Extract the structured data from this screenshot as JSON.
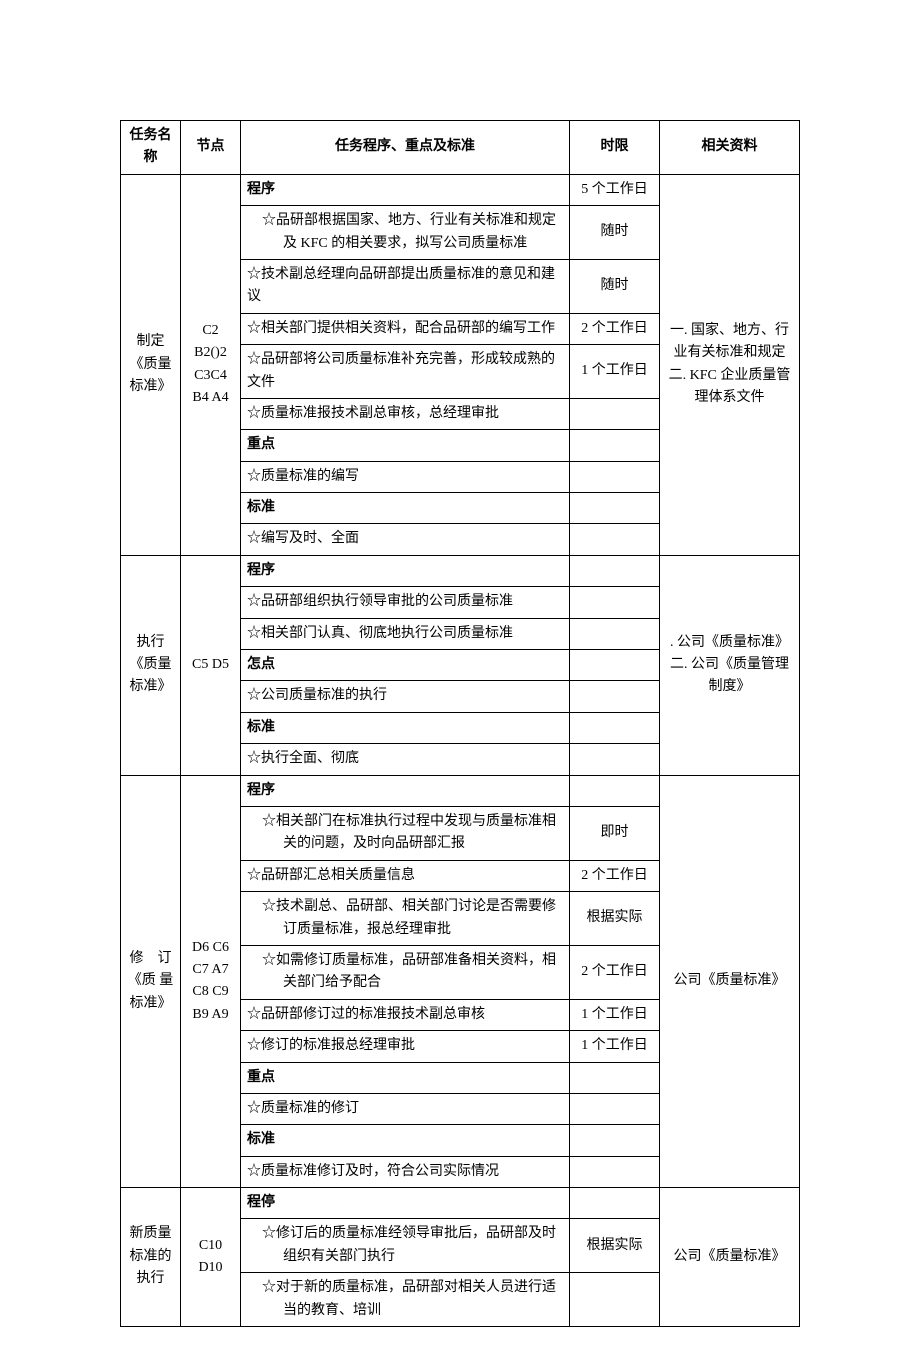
{
  "headers": {
    "task": "任务名称",
    "node": "节点",
    "proc": "任务程序、重点及标准",
    "time": "时限",
    "ref": "相关资料"
  },
  "groups": [
    {
      "task": "制定《质量标准》",
      "node": "C2 B2()2 C3C4 B4 A4",
      "ref": "一. 国家、地方、行业有关标准和规定\n二. KFC 企业质量管理体系文件",
      "rows": [
        {
          "proc": "程序",
          "time": "5 个工作日",
          "bold": true
        },
        {
          "proc": "☆品研部根据国家、地方、行业有关标准和规定及 KFC 的相关要求，拟写公司质量标准",
          "time": "随时",
          "indent": true
        },
        {
          "proc": "☆技术副总经理向品研部提出质量标准的意见和建议",
          "time": "随时"
        },
        {
          "proc": "☆相关部门提供相关资料，配合品研部的编写工作",
          "time": "2 个工作日"
        },
        {
          "proc": "☆品研部将公司质量标准补充完善，形成较成熟的文件",
          "time": "1 个工作日"
        },
        {
          "proc": "☆质量标准报技术副总审核，总经理审批",
          "time": ""
        },
        {
          "proc": "重点",
          "time": "",
          "bold": true
        },
        {
          "proc": "☆质量标准的编写",
          "time": ""
        },
        {
          "proc": "标准",
          "time": "",
          "bold": true
        },
        {
          "proc": "☆编写及时、全面",
          "time": ""
        }
      ]
    },
    {
      "task": "执行《质量标准》",
      "node": "C5 D5",
      "ref": ". 公司《质量标准》\n二. 公司《质量管理制度》",
      "rows": [
        {
          "proc": "程序",
          "time": "",
          "bold": true
        },
        {
          "proc": "☆品研部组织执行领导审批的公司质量标准",
          "time": ""
        },
        {
          "proc": "☆相关部门认真、彻底地执行公司质量标准",
          "time": ""
        },
        {
          "proc": "怎点",
          "time": "",
          "bold": true
        },
        {
          "proc": "☆公司质量标准的执行",
          "time": ""
        },
        {
          "proc": "标准",
          "time": "",
          "bold": true
        },
        {
          "proc": "☆执行全面、彻底",
          "time": ""
        }
      ]
    },
    {
      "task": "修　订《质 量标准》",
      "node": "D6 C6 C7 A7 C8 C9 B9 A9",
      "ref": "公司《质量标准》",
      "rows": [
        {
          "proc": "程序",
          "time": "",
          "bold": true
        },
        {
          "proc": "☆相关部门在标准执行过程中发现与质量标准相关的问题，及时向品研部汇报",
          "time": "即时",
          "indent": true
        },
        {
          "proc": "☆品研部汇总相关质量信息",
          "time": "2 个工作日"
        },
        {
          "proc": "☆技术副总、品研部、相关部门讨论是否需要修订质量标准，报总经理审批",
          "time": "根据实际",
          "indent": true
        },
        {
          "proc": "☆如需修订质量标准，品研部准备相关资料，相关部门给予配合",
          "time": "2 个工作日",
          "indent": true
        },
        {
          "proc": "☆品研部修订过的标准报技术副总审核",
          "time": "1 个工作日"
        },
        {
          "proc": "☆修订的标准报总经理审批",
          "time": "1 个工作日"
        },
        {
          "proc": "重点",
          "time": "",
          "bold": true
        },
        {
          "proc": "☆质量标准的修订",
          "time": ""
        },
        {
          "proc": "标准",
          "time": "",
          "bold": true
        },
        {
          "proc": "☆质量标准修订及时，符合公司实际情况",
          "time": ""
        }
      ]
    },
    {
      "task": "新质量标准的执行",
      "node": "C10 D10",
      "ref": "公司《质量标准》",
      "rows": [
        {
          "proc": "程停",
          "time": "",
          "bold": true
        },
        {
          "proc": "☆修订后的质量标准经领导审批后，品研部及时组织有关部门执行",
          "time": "根据实际",
          "indent": true
        },
        {
          "proc": "☆对于新的质量标准，品研部对相关人员进行适当的教育、培训",
          "time": "",
          "indent": true
        }
      ]
    }
  ]
}
